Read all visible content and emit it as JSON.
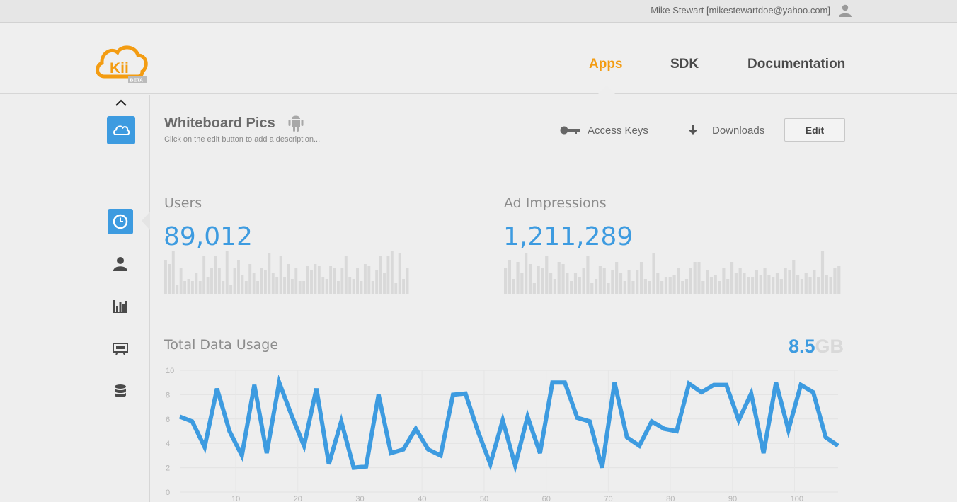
{
  "topbar": {
    "user": "Mike Stewart [mikestewartdoe@yahoo.com]"
  },
  "header": {
    "logo_text": "Kii",
    "logo_badge": "BETA",
    "nav": {
      "apps": "Apps",
      "sdk": "SDK",
      "docs": "Documentation"
    }
  },
  "app": {
    "title": "Whiteboard Pics",
    "description": "Click on the edit button to add a description...",
    "access_keys": "Access Keys",
    "downloads": "Downloads",
    "edit": "Edit"
  },
  "colors": {
    "accent": "#3d9be0",
    "brand_orange": "#f39c12",
    "muted_bar": "#d9d9d9"
  },
  "icons": {
    "sidebar": [
      "clock-icon",
      "user-icon",
      "bar-chart-icon",
      "monitor-icon",
      "database-icon"
    ],
    "header": [
      "kii-cloud-logo",
      "android-icon",
      "key-icon",
      "download-icon",
      "user-icon",
      "chevron-up-icon",
      "cloud-icon"
    ]
  },
  "stats": {
    "users": {
      "label": "Users",
      "value": "89,012"
    },
    "ads": {
      "label": "Ad Impressions",
      "value": "1,211,289"
    }
  },
  "usage": {
    "label": "Total Data Usage",
    "total": "8.5",
    "unit": "GB"
  },
  "chart_data": {
    "type": "line",
    "ylim": [
      0,
      10
    ],
    "yticks": [
      "0",
      "2",
      "4",
      "6",
      "8",
      "10"
    ],
    "xticks": [
      "10",
      "20",
      "30",
      "40",
      "50",
      "60",
      "70",
      "80",
      "90",
      "100"
    ],
    "grid": true,
    "x": [
      1,
      3,
      5,
      7,
      9,
      11,
      13,
      15,
      17,
      19,
      21,
      23,
      25,
      27,
      29,
      31,
      33,
      35,
      37,
      39,
      41,
      43,
      45,
      47,
      49,
      51,
      53,
      55,
      57,
      59,
      61,
      63,
      65,
      67,
      69,
      71,
      73,
      75,
      77,
      79,
      81,
      83,
      85,
      87,
      89,
      91,
      93,
      95,
      97,
      99,
      101,
      103,
      105,
      107
    ],
    "values": [
      6.2,
      5.8,
      3.7,
      8.5,
      5.0,
      3.0,
      8.8,
      3.2,
      9.0,
      6.3,
      3.8,
      8.5,
      2.3,
      5.8,
      2.0,
      2.1,
      8.0,
      3.2,
      3.5,
      5.2,
      3.5,
      3.0,
      8.0,
      8.1,
      5.0,
      2.3,
      5.9,
      2.2,
      6.2,
      3.2,
      9.0,
      9.0,
      6.1,
      5.8,
      2.0,
      9.0,
      4.5,
      3.8,
      5.8,
      5.2,
      5.0,
      8.9,
      8.2,
      8.8,
      8.8,
      5.9,
      8.1,
      3.2,
      9.0,
      5.1,
      8.8,
      8.2,
      4.5,
      3.8
    ]
  },
  "sparks": {
    "users": [
      0.8,
      0.7,
      1.0,
      0.2,
      0.6,
      0.3,
      0.35,
      0.3,
      0.5,
      0.3,
      0.9,
      0.4,
      0.6,
      0.9,
      0.6,
      0.3,
      1.0,
      0.2,
      0.6,
      0.8,
      0.45,
      0.3,
      0.7,
      0.5,
      0.3,
      0.6,
      0.55,
      0.95,
      0.5,
      0.4,
      0.9,
      0.4,
      0.7,
      0.35,
      0.6,
      0.3,
      0.3,
      0.65,
      0.55,
      0.7,
      0.65,
      0.4,
      0.35,
      0.65,
      0.6,
      0.3,
      0.6,
      0.9,
      0.4,
      0.35,
      0.6,
      0.3,
      0.7,
      0.65,
      0.3,
      0.55,
      0.9,
      0.5,
      0.9,
      1.0,
      0.25,
      0.95,
      0.35,
      0.6
    ],
    "ads": [
      0.6,
      0.8,
      0.35,
      0.75,
      0.5,
      0.95,
      0.7,
      0.25,
      0.65,
      0.6,
      0.9,
      0.5,
      0.35,
      0.75,
      0.7,
      0.5,
      0.3,
      0.5,
      0.4,
      0.6,
      0.9,
      0.25,
      0.35,
      0.65,
      0.6,
      0.25,
      0.55,
      0.75,
      0.5,
      0.3,
      0.55,
      0.3,
      0.55,
      0.75,
      0.35,
      0.3,
      0.95,
      0.5,
      0.3,
      0.4,
      0.4,
      0.45,
      0.6,
      0.3,
      0.35,
      0.6,
      0.75,
      0.75,
      0.3,
      0.55,
      0.4,
      0.45,
      0.3,
      0.6,
      0.35,
      0.75,
      0.5,
      0.6,
      0.5,
      0.4,
      0.4,
      0.55,
      0.45,
      0.6,
      0.45,
      0.4,
      0.5,
      0.35,
      0.6,
      0.55,
      0.8,
      0.45,
      0.35,
      0.5,
      0.4,
      0.55,
      0.4,
      1.0,
      0.45,
      0.4,
      0.6,
      0.65
    ]
  }
}
